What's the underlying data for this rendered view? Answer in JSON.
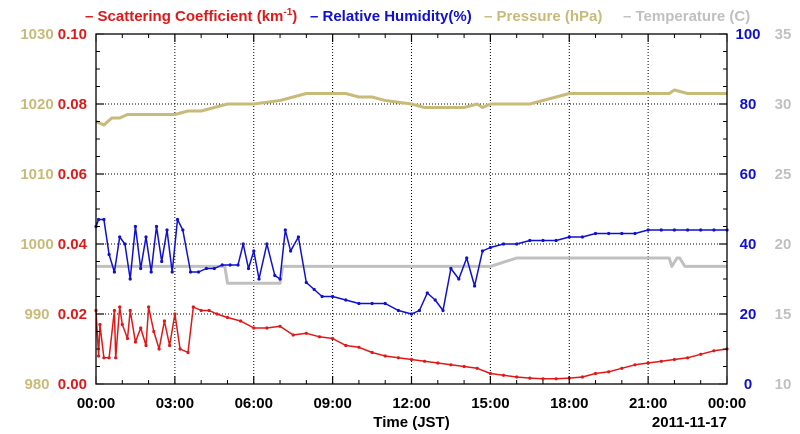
{
  "chart_data": {
    "type": "line",
    "legend": {
      "position": "top",
      "entries": [
        {
          "prefix": "–",
          "text_before": "Scattering Coefficient (km",
          "superscript": "-1",
          "text_after": ")",
          "color": "#e01818"
        },
        {
          "prefix": "–",
          "text": "Relative Humidity(%)",
          "color": "#1010d0"
        },
        {
          "prefix": "–",
          "text": "Pressure (hPa)",
          "color": "#c8bb7a"
        },
        {
          "prefix": "–",
          "text": "Temperature (C)",
          "color": "#c0c0c0"
        }
      ]
    },
    "xlabel": "Time (JST)",
    "date_label": "2011-11-17",
    "x_range_hours": [
      0,
      24
    ],
    "x_ticks": [
      "00:00",
      "03:00",
      "06:00",
      "09:00",
      "12:00",
      "15:00",
      "18:00",
      "21:00",
      "00:00"
    ],
    "grid": true,
    "axes": {
      "scattering": {
        "side": "left-inner",
        "color": "#e01818",
        "range": [
          0.0,
          0.1
        ],
        "ticks": [
          "0.00",
          "0.02",
          "0.04",
          "0.06",
          "0.08",
          "0.10"
        ]
      },
      "pressure": {
        "side": "left-outer",
        "color": "#c8bb7a",
        "range": [
          980,
          1030
        ],
        "ticks": [
          "980",
          "990",
          "1000",
          "1010",
          "1020",
          "1030"
        ]
      },
      "humidity": {
        "side": "right-inner",
        "color": "#1010d0",
        "range": [
          0,
          100
        ],
        "ticks": [
          "0",
          "20",
          "40",
          "60",
          "80",
          "100"
        ]
      },
      "temperature": {
        "side": "right-outer",
        "color": "#c0c0c0",
        "range": [
          10,
          35
        ],
        "ticks": [
          "10",
          "15",
          "20",
          "25",
          "30",
          "35"
        ]
      }
    },
    "series": [
      {
        "name": "Scattering Coefficient",
        "axis": "scattering",
        "color": "#e01818",
        "x": [
          0.0,
          0.1,
          0.15,
          0.3,
          0.5,
          0.7,
          0.75,
          0.9,
          1.0,
          1.2,
          1.3,
          1.5,
          1.7,
          1.9,
          2.0,
          2.2,
          2.4,
          2.6,
          2.8,
          3.0,
          3.2,
          3.5,
          3.7,
          4.0,
          4.3,
          4.6,
          5.0,
          5.5,
          6.0,
          6.5,
          7.0,
          7.5,
          8.0,
          8.5,
          9.0,
          9.5,
          10.0,
          10.5,
          11.0,
          11.5,
          12.0,
          12.5,
          13.0,
          13.5,
          14.0,
          14.5,
          15.0,
          15.5,
          16.0,
          16.5,
          17.0,
          17.5,
          18.0,
          18.5,
          19.0,
          19.5,
          20.0,
          20.5,
          21.0,
          21.5,
          22.0,
          22.5,
          23.0,
          23.5,
          24.0
        ],
        "values": [
          0.021,
          0.008,
          0.017,
          0.0075,
          0.0075,
          0.021,
          0.0075,
          0.022,
          0.017,
          0.013,
          0.021,
          0.012,
          0.016,
          0.011,
          0.022,
          0.015,
          0.01,
          0.018,
          0.011,
          0.02,
          0.01,
          0.009,
          0.022,
          0.021,
          0.021,
          0.02,
          0.019,
          0.018,
          0.016,
          0.016,
          0.0165,
          0.014,
          0.0145,
          0.0135,
          0.013,
          0.011,
          0.0105,
          0.009,
          0.008,
          0.0075,
          0.007,
          0.0065,
          0.006,
          0.0055,
          0.005,
          0.0045,
          0.003,
          0.0025,
          0.002,
          0.0017,
          0.0015,
          0.0015,
          0.0017,
          0.002,
          0.003,
          0.0035,
          0.0045,
          0.0055,
          0.006,
          0.0065,
          0.007,
          0.0075,
          0.0085,
          0.0095,
          0.01
        ]
      },
      {
        "name": "Relative Humidity",
        "axis": "humidity",
        "color": "#1010d0",
        "x": [
          0.0,
          0.1,
          0.3,
          0.5,
          0.7,
          0.9,
          1.1,
          1.3,
          1.5,
          1.7,
          1.9,
          2.1,
          2.3,
          2.5,
          2.7,
          2.9,
          3.1,
          3.3,
          3.6,
          3.9,
          4.2,
          4.5,
          4.8,
          5.1,
          5.4,
          5.6,
          5.8,
          6.0,
          6.2,
          6.5,
          6.8,
          7.0,
          7.2,
          7.4,
          7.7,
          8.0,
          8.3,
          8.6,
          9.0,
          9.5,
          10.0,
          10.5,
          11.0,
          11.5,
          12.0,
          12.3,
          12.6,
          12.9,
          13.2,
          13.5,
          13.8,
          14.1,
          14.4,
          14.7,
          15.0,
          15.5,
          16.0,
          16.5,
          17.0,
          17.5,
          18.0,
          18.5,
          19.0,
          19.5,
          20.0,
          20.5,
          21.0,
          21.5,
          22.0,
          22.5,
          23.0,
          23.5,
          24.0
        ],
        "values": [
          45,
          47,
          47,
          37,
          32,
          42,
          40,
          30,
          45,
          33,
          42,
          32,
          45,
          35,
          44,
          32,
          47,
          44,
          32,
          32,
          33,
          33,
          34,
          34,
          34,
          40,
          33,
          38,
          30,
          40,
          31,
          30,
          44,
          38,
          42,
          29,
          27,
          25,
          25,
          24,
          23,
          23,
          23,
          21,
          20,
          21,
          26,
          24,
          21,
          33,
          30,
          36,
          28,
          38,
          39,
          40,
          40,
          41,
          41,
          41,
          42,
          42,
          43,
          43,
          43,
          43,
          44,
          44,
          44,
          44,
          44,
          44,
          44
        ]
      },
      {
        "name": "Pressure",
        "axis": "pressure",
        "color": "#c8bb7a",
        "x": [
          0.0,
          0.3,
          0.6,
          0.9,
          1.2,
          1.5,
          2.0,
          2.5,
          3.0,
          3.5,
          4.0,
          4.5,
          5.0,
          6.0,
          7.0,
          7.5,
          8.0,
          8.5,
          9.0,
          9.5,
          10.0,
          10.5,
          11.0,
          12.0,
          12.5,
          13.0,
          13.5,
          14.0,
          14.5,
          14.7,
          15.0,
          15.5,
          16.0,
          16.5,
          17.0,
          18.0,
          19.0,
          20.0,
          21.0,
          21.5,
          21.8,
          22.0,
          22.5,
          23.0,
          24.0
        ],
        "values": [
          1017.5,
          1017,
          1018,
          1018,
          1018.5,
          1018.5,
          1018.5,
          1018.5,
          1018.5,
          1019,
          1019,
          1019.5,
          1020,
          1020,
          1020.5,
          1021,
          1021.5,
          1021.5,
          1021.5,
          1021.5,
          1021,
          1021,
          1020.5,
          1020,
          1019.5,
          1019.5,
          1019.5,
          1019.5,
          1020,
          1019.5,
          1020,
          1020,
          1020,
          1020,
          1020.5,
          1021.5,
          1021.5,
          1021.5,
          1021.5,
          1021.5,
          1021.5,
          1022,
          1021.5,
          1021.5,
          1021.5
        ]
      },
      {
        "name": "Temperature",
        "axis": "temperature",
        "color": "#c0c0c0",
        "x": [
          0.0,
          1.0,
          2.0,
          3.0,
          4.0,
          4.9,
          5.0,
          6.0,
          7.0,
          7.1,
          8.0,
          9.0,
          10.0,
          11.0,
          12.0,
          13.0,
          14.0,
          15.0,
          16.0,
          17.0,
          18.0,
          19.0,
          20.0,
          21.0,
          21.8,
          21.9,
          22.1,
          22.2,
          22.4,
          23.0,
          24.0
        ],
        "values": [
          18.4,
          18.4,
          18.4,
          18.4,
          18.4,
          18.4,
          17.2,
          17.2,
          17.2,
          18.4,
          18.4,
          18.4,
          18.4,
          18.4,
          18.4,
          18.4,
          18.4,
          18.4,
          19.0,
          19.0,
          19.0,
          19.0,
          19.0,
          19.0,
          19.0,
          18.4,
          19.0,
          19.0,
          18.4,
          18.4,
          18.4
        ]
      }
    ]
  }
}
